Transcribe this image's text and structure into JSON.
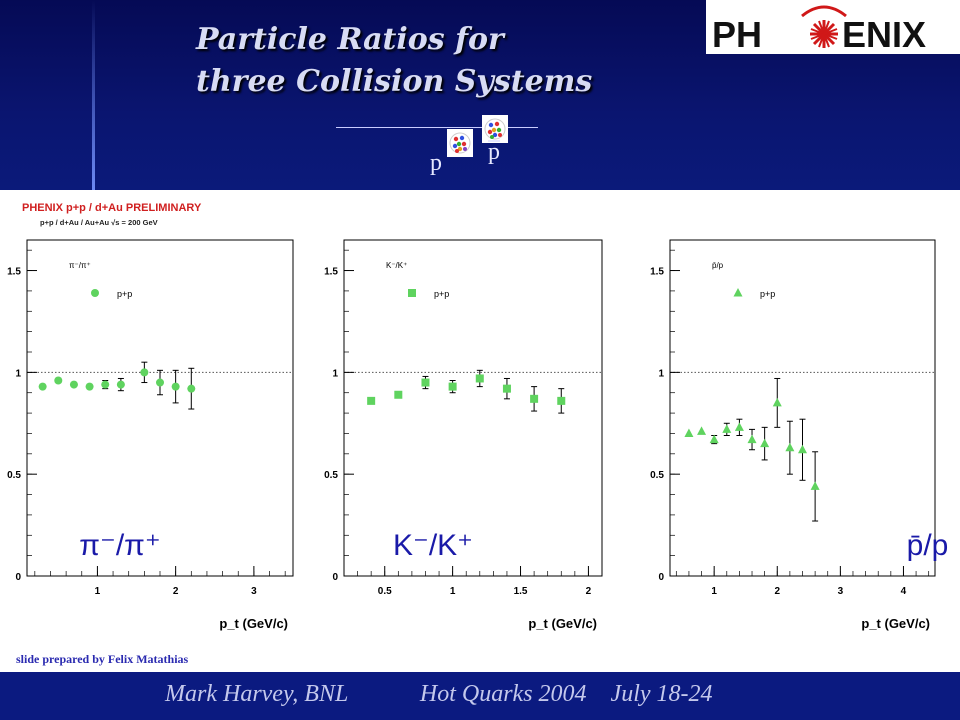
{
  "title": {
    "line1": "Particle Ratios for",
    "line2": "three Collision Systems"
  },
  "logo": {
    "text_left": "PH",
    "text_right": "ENIX"
  },
  "header_labels": {
    "p_lower": "p",
    "p_upper": "p"
  },
  "preliminary": {
    "heading": "PHENIX p+p / d+Au PRELIMINARY",
    "subheading": "p+p / d+Au / Au+Au  √s = 200 GeV"
  },
  "credit": "slide prepared  by Felix Matathias",
  "footer": {
    "text": "Mark Harvey, BNL            Hot Quarks 2004    July 18-24"
  },
  "colors": {
    "marker": "#5fd35f",
    "header_bg": "#0a1570",
    "footer_bg": "#0b1a80",
    "logo_red": "#d01818"
  },
  "chart_data": [
    {
      "type": "scatter",
      "panel_label": "π⁻/π⁺",
      "inset_label": "π⁻/π⁺",
      "overlay_label": "π⁻/π⁺",
      "marker": "circle",
      "xlabel": "p_t (GeV/c)",
      "ylabel": "",
      "xlim": [
        0.1,
        3.5
      ],
      "ylim": [
        0,
        1.65
      ],
      "xticks": [
        "1",
        "2",
        "3"
      ],
      "yticks": [
        "0",
        "0.5",
        "1",
        "1.5"
      ],
      "reference_line": 1,
      "series": [
        {
          "name": "p+p",
          "x": [
            0.3,
            0.5,
            0.7,
            0.9,
            1.1,
            1.3,
            1.6,
            1.8,
            2.0,
            2.2
          ],
          "y": [
            0.93,
            0.96,
            0.94,
            0.93,
            0.94,
            0.94,
            1.0,
            0.95,
            0.93,
            0.92
          ],
          "err": [
            0.01,
            0.01,
            0.01,
            0.01,
            0.02,
            0.03,
            0.05,
            0.06,
            0.08,
            0.1
          ]
        }
      ]
    },
    {
      "type": "scatter",
      "panel_label": "K⁻/K⁺",
      "inset_label": "K⁻/K⁺",
      "overlay_label": "K⁻/K⁺",
      "marker": "square",
      "xlabel": "p_t (GeV/c)",
      "ylabel": "",
      "xlim": [
        0.2,
        2.1
      ],
      "ylim": [
        0,
        1.65
      ],
      "xticks": [
        "0.5",
        "1",
        "1.5",
        "2"
      ],
      "yticks": [
        "0",
        "0.5",
        "1",
        "1.5"
      ],
      "reference_line": 1,
      "series": [
        {
          "name": "p+p",
          "x": [
            0.4,
            0.6,
            0.8,
            1.0,
            1.2,
            1.4,
            1.6,
            1.8
          ],
          "y": [
            0.86,
            0.89,
            0.95,
            0.93,
            0.97,
            0.92,
            0.87,
            0.86
          ],
          "err": [
            0.01,
            0.01,
            0.03,
            0.03,
            0.04,
            0.05,
            0.06,
            0.06
          ]
        }
      ]
    },
    {
      "type": "scatter",
      "panel_label": "p̄/p",
      "inset_label": "p̄/p",
      "overlay_label": "p̄/p",
      "marker": "triangle",
      "xlabel": "p_t (GeV/c)",
      "ylabel": "",
      "xlim": [
        0.3,
        4.5
      ],
      "ylim": [
        0,
        1.65
      ],
      "xticks": [
        "1",
        "2",
        "3",
        "4"
      ],
      "yticks": [
        "0",
        "0.5",
        "1",
        "1.5"
      ],
      "reference_line": 1,
      "series": [
        {
          "name": "p+p",
          "x": [
            0.6,
            0.8,
            1.0,
            1.2,
            1.4,
            1.6,
            1.8,
            2.0,
            2.2,
            2.4,
            2.6
          ],
          "y": [
            0.7,
            0.71,
            0.67,
            0.72,
            0.73,
            0.67,
            0.65,
            0.85,
            0.63,
            0.62,
            0.44
          ],
          "err": [
            0.01,
            0.01,
            0.02,
            0.03,
            0.04,
            0.05,
            0.08,
            0.12,
            0.13,
            0.15,
            0.17
          ]
        }
      ]
    }
  ]
}
